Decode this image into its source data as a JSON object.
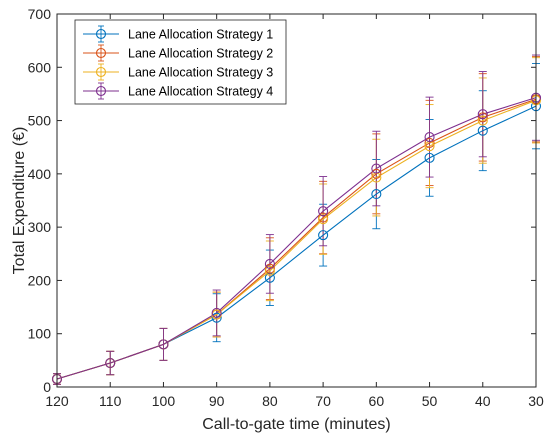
{
  "chart_data": {
    "type": "line",
    "title": "",
    "xlabel": "Call-to-gate time (minutes)",
    "ylabel": "Total Expenditure (€)",
    "x": [
      120,
      110,
      100,
      90,
      80,
      70,
      60,
      50,
      40,
      30
    ],
    "x_tick_labels": [
      "120",
      "110",
      "100",
      "90",
      "80",
      "70",
      "60",
      "50",
      "40",
      "30"
    ],
    "xlim": [
      120,
      30
    ],
    "x_reversed": true,
    "ylim": [
      0,
      700
    ],
    "y_ticks": [
      0,
      100,
      200,
      300,
      400,
      500,
      600,
      700
    ],
    "y_tick_labels": [
      "0",
      "100",
      "200",
      "300",
      "400",
      "500",
      "600",
      "700"
    ],
    "grid": false,
    "legend_position": "top-left",
    "markers": "open circle with vertical error bars",
    "series": [
      {
        "name": "Lane Allocation Strategy 1",
        "color": "#0072BD",
        "values": [
          15,
          45,
          80,
          130,
          205,
          285,
          362,
          430,
          481,
          527
        ],
        "errors": [
          10,
          22,
          30,
          45,
          52,
          58,
          65,
          72,
          75,
          80
        ]
      },
      {
        "name": "Lane Allocation Strategy 2",
        "color": "#D95319",
        "values": [
          15,
          45,
          80,
          136,
          222,
          318,
          400,
          458,
          506,
          540
        ],
        "errors": [
          10,
          22,
          30,
          42,
          58,
          68,
          75,
          80,
          82,
          80
        ]
      },
      {
        "name": "Lane Allocation Strategy 3",
        "color": "#EDB120",
        "values": [
          15,
          45,
          80,
          136,
          218,
          315,
          393,
          452,
          500,
          538
        ],
        "errors": [
          10,
          22,
          30,
          42,
          56,
          66,
          72,
          78,
          80,
          80
        ]
      },
      {
        "name": "Lane Allocation Strategy 4",
        "color": "#7E2F8E",
        "values": [
          15,
          45,
          80,
          139,
          231,
          330,
          410,
          469,
          512,
          543
        ],
        "errors": [
          10,
          22,
          30,
          43,
          55,
          65,
          70,
          75,
          80,
          80
        ]
      }
    ]
  }
}
